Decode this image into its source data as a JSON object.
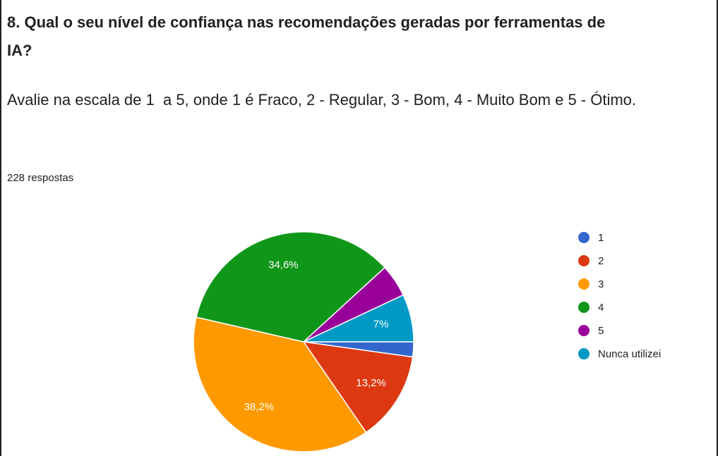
{
  "chart_data": {
    "type": "pie",
    "title": "8. Qual o seu nível de confiança nas recomendações geradas por ferramentas de IA?",
    "subtitle": "Avalie na escala de 1  a 5, onde 1 é Fraco, 2 - Regular, 3 - Bom, 4 - Muito Bom e 5 - Ótimo.",
    "responses": "228 respostas",
    "categories": [
      "1",
      "2",
      "3",
      "4",
      "5",
      "Nunca utilizei"
    ],
    "values": [
      2.2,
      13.2,
      38.2,
      34.6,
      4.8,
      7
    ],
    "value_labels": [
      null,
      "13,2%",
      "38,2%",
      "34,6%",
      null,
      "7%"
    ],
    "colors": [
      "#3366cc",
      "#dc3912",
      "#ff9900",
      "#109618",
      "#990099",
      "#0099c6"
    ],
    "legend": "right"
  }
}
